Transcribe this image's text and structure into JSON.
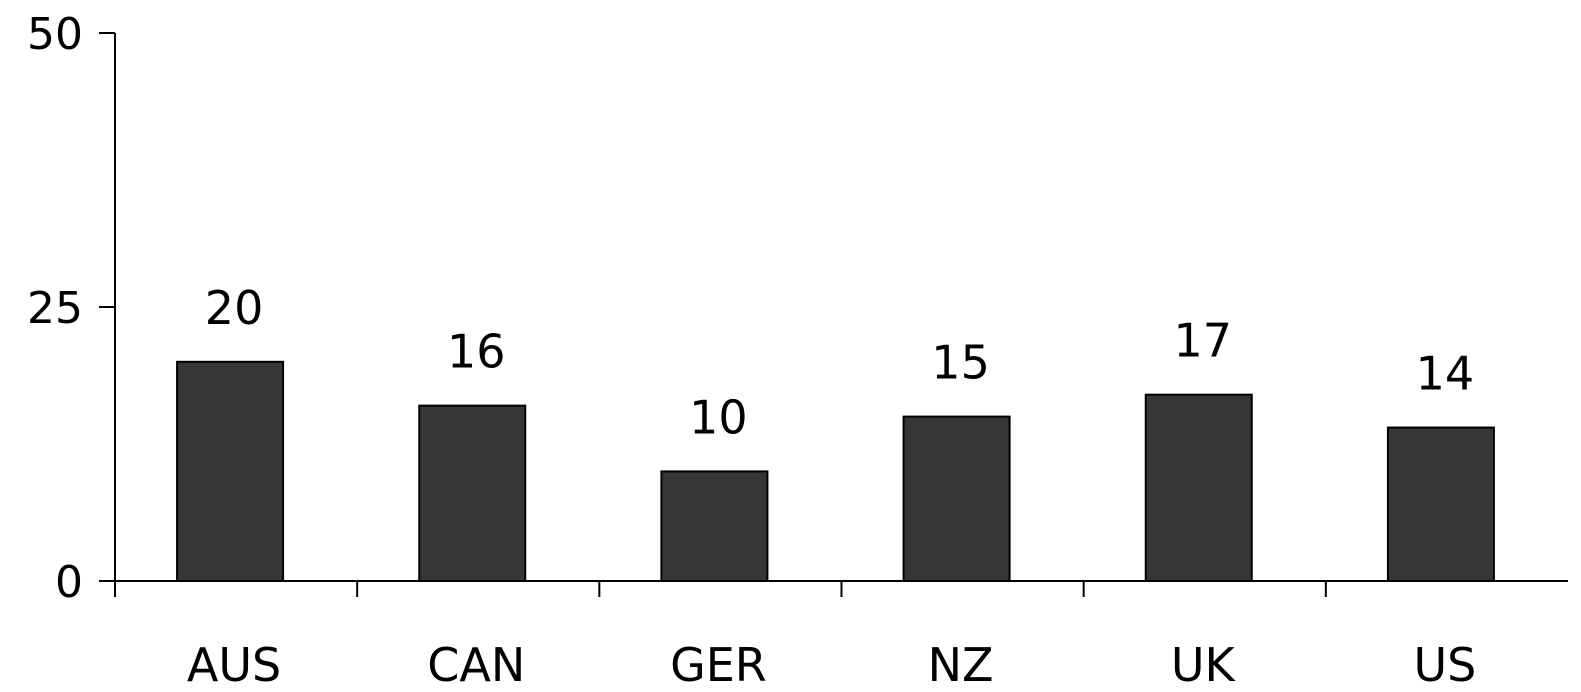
{
  "chart_data": {
    "type": "bar",
    "categories": [
      "AUS",
      "CAN",
      "GER",
      "NZ",
      "UK",
      "US"
    ],
    "values": [
      20,
      16,
      10,
      15,
      17,
      14
    ],
    "data_labels": [
      "20",
      "16",
      "10",
      "15",
      "17",
      "14"
    ],
    "ylim": [
      0,
      50
    ],
    "yticks": [
      0,
      25,
      50
    ],
    "ytick_labels": [
      "0",
      "25",
      "50"
    ],
    "title": "",
    "xlabel": "",
    "ylabel": "",
    "grid": false,
    "legend": "none",
    "colors": {
      "bar_fill": "#363636",
      "bar_stroke": "#000000",
      "axis": "#000000",
      "text": "#000000",
      "background": "#ffffff"
    }
  }
}
